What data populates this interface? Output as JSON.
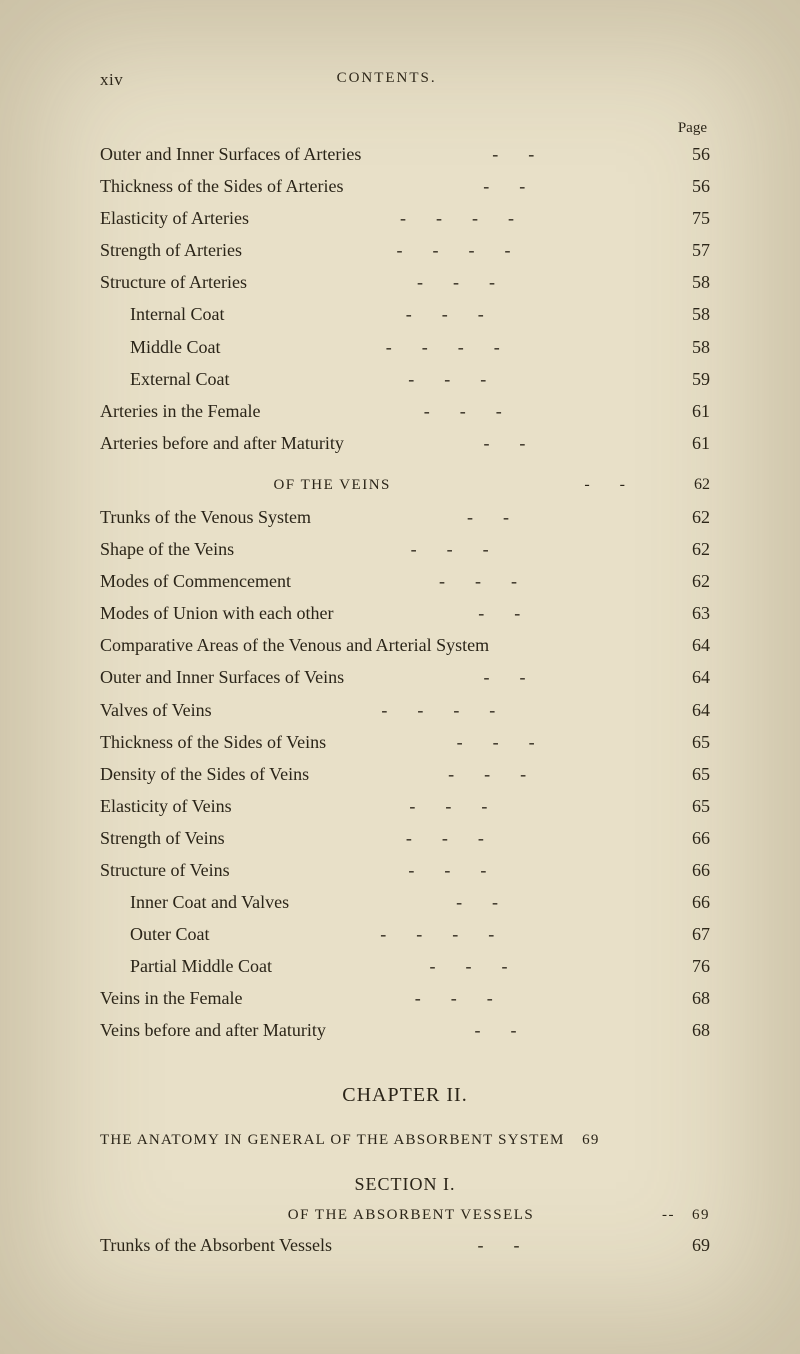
{
  "header": {
    "roman_numeral": "xiv",
    "running_title": "CONTENTS.",
    "page_label": "Page"
  },
  "section1_entries": [
    {
      "title": "Outer and Inner Surfaces of Arteries",
      "page": "56",
      "indent": 0,
      "dashes": "--"
    },
    {
      "title": "Thickness of the Sides of Arteries",
      "page": "56",
      "indent": 0,
      "dashes": "--"
    },
    {
      "title": "Elasticity of Arteries",
      "page": "75",
      "indent": 0,
      "dashes": "----"
    },
    {
      "title": "Strength of Arteries",
      "page": "57",
      "indent": 0,
      "dashes": "----"
    },
    {
      "title": "Structure of Arteries",
      "page": "58",
      "indent": 0,
      "dashes": "---"
    },
    {
      "title": "Internal Coat",
      "page": "58",
      "indent": 1,
      "dashes": "---"
    },
    {
      "title": "Middle Coat",
      "page": "58",
      "indent": 1,
      "dashes": "----"
    },
    {
      "title": "External Coat",
      "page": "59",
      "indent": 1,
      "dashes": "---"
    },
    {
      "title": "Arteries in the Female",
      "page": "61",
      "indent": 0,
      "dashes": "---"
    },
    {
      "title": "Arteries before and after Maturity",
      "page": "61",
      "indent": 0,
      "dashes": "--"
    }
  ],
  "veins_heading": {
    "text": "OF THE VEINS",
    "page": "62",
    "dashes": "--"
  },
  "section2_entries": [
    {
      "title": "Trunks of the Venous System",
      "page": "62",
      "indent": 0,
      "dashes": "--"
    },
    {
      "title": "Shape of the Veins",
      "page": "62",
      "indent": 0,
      "dashes": "---"
    },
    {
      "title": "Modes of Commencement",
      "page": "62",
      "indent": 0,
      "dashes": "---"
    },
    {
      "title": "Modes of Union with each other",
      "page": "63",
      "indent": 0,
      "dashes": "--"
    },
    {
      "title": "Comparative Areas of the Venous and Arterial System",
      "page": "64",
      "indent": 0,
      "dashes": ""
    },
    {
      "title": "Outer and Inner Surfaces of Veins",
      "page": "64",
      "indent": 0,
      "dashes": "--"
    },
    {
      "title": "Valves of Veins",
      "page": "64",
      "indent": 0,
      "dashes": "----"
    },
    {
      "title": "Thickness of the Sides of Veins",
      "page": "65",
      "indent": 0,
      "dashes": "---"
    },
    {
      "title": "Density of the Sides of Veins",
      "page": "65",
      "indent": 0,
      "dashes": "---"
    },
    {
      "title": "Elasticity of Veins",
      "page": "65",
      "indent": 0,
      "dashes": "---"
    },
    {
      "title": "Strength of Veins",
      "page": "66",
      "indent": 0,
      "dashes": "---"
    },
    {
      "title": "Structure of Veins",
      "page": "66",
      "indent": 0,
      "dashes": "---"
    },
    {
      "title": "Inner Coat and Valves",
      "page": "66",
      "indent": 1,
      "dashes": "--"
    },
    {
      "title": "Outer Coat",
      "page": "67",
      "indent": 1,
      "dashes": "----"
    },
    {
      "title": "Partial Middle Coat",
      "page": "76",
      "indent": 1,
      "dashes": "---"
    },
    {
      "title": "Veins in the Female",
      "page": "68",
      "indent": 0,
      "dashes": "---"
    },
    {
      "title": "Veins before and after Maturity",
      "page": "68",
      "indent": 0,
      "dashes": "--"
    }
  ],
  "chapter": {
    "title": "CHAPTER II.",
    "subtitle": "THE ANATOMY IN GENERAL OF THE ABSORBENT SYSTEM",
    "subtitle_page": "69",
    "section_label": "SECTION I.",
    "sub_heading": "OF THE ABSORBENT VESSELS",
    "sub_heading_page": "69",
    "sub_heading_dashes": "--"
  },
  "section3_entries": [
    {
      "title": "Trunks of the Absorbent Vessels",
      "page": "69",
      "indent": 0,
      "dashes": "--"
    }
  ],
  "colors": {
    "background": "#e8e0c8",
    "text": "#2a2418"
  }
}
